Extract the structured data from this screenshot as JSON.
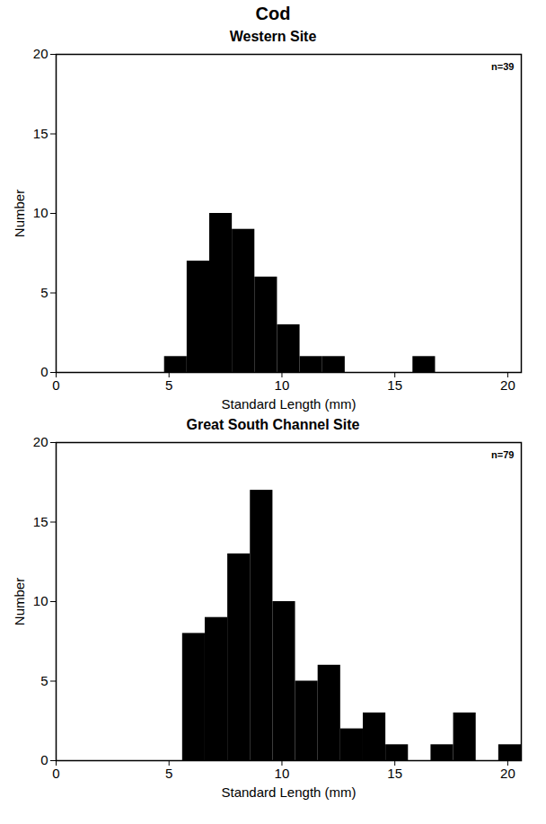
{
  "chart_data": [
    {
      "type": "histogram",
      "title": "Cod",
      "subtitle": "Western Site",
      "annotation": "n=39",
      "x_label": "Standard Length (mm)",
      "y_label": "Number",
      "bins": [
        4.8,
        5.8,
        6.8,
        7.8,
        8.8,
        9.8,
        10.8,
        11.8,
        12.8,
        13.8,
        14.8,
        15.8,
        16.8
      ],
      "values": [
        1,
        7,
        10,
        9,
        6,
        3,
        1,
        1,
        0,
        0,
        0,
        1
      ],
      "color": "#000000",
      "xlim": [
        0,
        20.6
      ],
      "xticks": [
        0,
        5,
        10,
        15,
        20
      ],
      "ylim": [
        0,
        20
      ],
      "yticks": [
        0,
        5,
        10,
        15,
        20
      ],
      "grid": false
    },
    {
      "type": "histogram",
      "subtitle": "Great South Channel Site",
      "annotation": "n=79",
      "x_label": "Standard Length (mm)",
      "y_label": "Number",
      "bins": [
        5.6,
        6.6,
        7.6,
        8.6,
        9.6,
        10.6,
        11.6,
        12.6,
        13.6,
        14.6,
        15.6,
        16.6,
        17.6,
        18.6,
        19.6,
        20.6
      ],
      "values": [
        8,
        9,
        13,
        17,
        10,
        5,
        6,
        2,
        3,
        1,
        0,
        1,
        3,
        0,
        1
      ],
      "color": "#000000",
      "xlim": [
        0,
        20.6
      ],
      "xticks": [
        0,
        5,
        10,
        15,
        20
      ],
      "ylim": [
        0,
        20
      ],
      "yticks": [
        0,
        5,
        10,
        15,
        20
      ],
      "grid": false
    }
  ]
}
